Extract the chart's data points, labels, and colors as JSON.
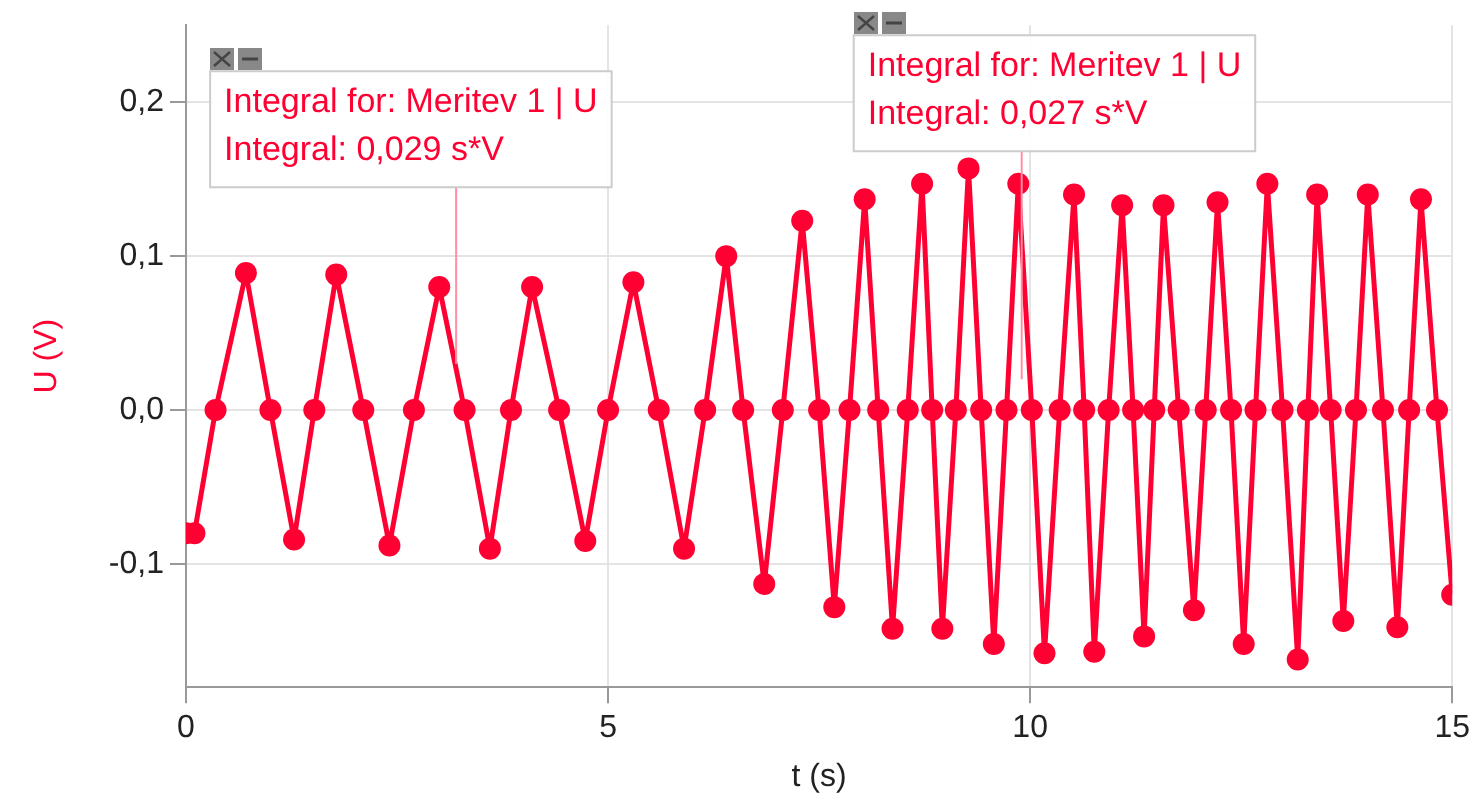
{
  "chart_data": {
    "type": "line",
    "xlabel": "t (s)",
    "ylabel": "U (V)",
    "marker": "circle",
    "grid": true,
    "legend": false,
    "xlim": [
      0,
      15
    ],
    "xticks": [
      0,
      5,
      10,
      15
    ],
    "ylim": [
      -0.18,
      0.25
    ],
    "yticks": [
      {
        "value": -0.1,
        "label": "-0,1"
      },
      {
        "value": 0,
        "label": "0,0"
      },
      {
        "value": 0.1,
        "label": "0,1"
      },
      {
        "value": 0.2,
        "label": "0,2"
      }
    ],
    "x": [
      0,
      0.1,
      0.35,
      0.71,
      1.0,
      1.28,
      1.52,
      1.78,
      2.1,
      2.41,
      2.7,
      3.0,
      3.3,
      3.6,
      3.85,
      4.1,
      4.42,
      4.73,
      5.0,
      5.3,
      5.6,
      5.9,
      6.15,
      6.4,
      6.6,
      6.85,
      7.07,
      7.3,
      7.5,
      7.68,
      7.86,
      8.04,
      8.2,
      8.37,
      8.55,
      8.72,
      8.84,
      8.96,
      9.12,
      9.27,
      9.42,
      9.57,
      9.72,
      9.86,
      10.02,
      10.17,
      10.35,
      10.52,
      10.64,
      10.76,
      10.93,
      11.09,
      11.22,
      11.35,
      11.47,
      11.58,
      11.76,
      11.94,
      12.08,
      12.22,
      12.38,
      12.53,
      12.67,
      12.81,
      12.99,
      13.17,
      13.29,
      13.4,
      13.56,
      13.71,
      13.86,
      14.0,
      14.18,
      14.35,
      14.49,
      14.63,
      14.82,
      15.0
    ],
    "series": [
      {
        "color": "#ff0033",
        "values": [
          -0.08,
          -0.08,
          0,
          0.089,
          0,
          -0.084,
          0,
          0.088,
          0,
          -0.088,
          0,
          0.08,
          0,
          -0.09,
          0,
          0.08,
          0,
          -0.085,
          0,
          0.083,
          0,
          -0.09,
          0,
          0.1,
          0,
          -0.113,
          0,
          0.123,
          0,
          -0.128,
          0,
          0.137,
          0,
          -0.142,
          0,
          0.147,
          0,
          -0.142,
          0,
          0.157,
          0,
          -0.152,
          0,
          0.147,
          0,
          -0.158,
          0,
          0.14,
          0,
          -0.157,
          0,
          0.133,
          0,
          -0.147,
          0,
          0.133,
          0,
          -0.13,
          0,
          0.135,
          0,
          -0.152,
          0,
          0.147,
          0,
          -0.162,
          0,
          0.14,
          0,
          -0.137,
          0,
          0.14,
          0,
          -0.141,
          0,
          0.137,
          0,
          -0.12
        ]
      }
    ],
    "annotations": [
      "Integral for: Meritev 1 | U",
      {
        "text": "Integral: 0,029 s*V",
        "x": 3.2,
        "y": 0.03
      },
      "Integral for: Meritev 1 | U",
      {
        "text": "Integral: 0,027 s*V",
        "x": 9.9,
        "y": 0.02
      }
    ]
  }
}
